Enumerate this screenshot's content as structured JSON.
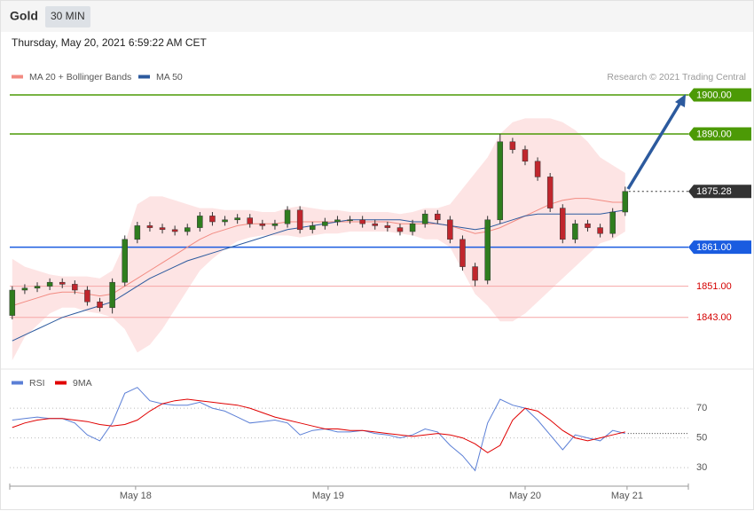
{
  "header": {
    "symbol": "Gold",
    "interval": "30 MIN",
    "timestamp": "Thursday, May 20, 2021 6:59:22 AM CET"
  },
  "chart_data": {
    "type": "candlestick",
    "copyright": "Research © 2021 Trading Central",
    "up_color": "#2f7d1e",
    "down_color": "#c0262d",
    "open": [
      1843.5,
      1850,
      1850.5,
      1851,
      1852,
      1851.5,
      1850,
      1847,
      1845.5,
      1852,
      1863,
      1866.5,
      1866,
      1865.5,
      1865,
      1866,
      1869,
      1867.5,
      1868,
      1868.5,
      1867,
      1866.5,
      1867,
      1870.5,
      1865.5,
      1866.5,
      1867.5,
      1868,
      1868,
      1867,
      1866.5,
      1866,
      1865,
      1867,
      1869.5,
      1868,
      1863,
      1856,
      1852.5,
      1868,
      1888,
      1886,
      1883,
      1879,
      1871,
      1863,
      1867,
      1866,
      1864.5,
      1870
    ],
    "high": [
      1851,
      1851.5,
      1852,
      1853,
      1853,
      1852.5,
      1851,
      1848,
      1853,
      1864,
      1867.5,
      1867.5,
      1867,
      1866.5,
      1867,
      1870,
      1870,
      1869,
      1869.5,
      1869.5,
      1868,
      1868,
      1871.5,
      1871.5,
      1867.5,
      1868.5,
      1869,
      1869,
      1869,
      1868,
      1867.5,
      1867,
      1868,
      1870.5,
      1870.5,
      1869,
      1864,
      1857,
      1869,
      1890,
      1889,
      1887,
      1884,
      1880,
      1872,
      1868,
      1868,
      1867,
      1871,
      1876.5
    ],
    "low": [
      1842.5,
      1849,
      1849.5,
      1850,
      1850.5,
      1849,
      1846,
      1844.5,
      1844,
      1851,
      1862,
      1865,
      1864.5,
      1864,
      1864,
      1865,
      1866.5,
      1866.5,
      1867,
      1866,
      1865.5,
      1865.5,
      1866,
      1864.5,
      1864.5,
      1865.5,
      1866.5,
      1867,
      1866,
      1865.5,
      1865,
      1864,
      1864,
      1866,
      1867,
      1862,
      1855,
      1851,
      1851.5,
      1867,
      1885,
      1882,
      1878,
      1870,
      1862,
      1862,
      1865,
      1863.5,
      1863.5,
      1869
    ],
    "close": [
      1850,
      1850.5,
      1851,
      1852,
      1851.5,
      1850,
      1847,
      1845.5,
      1852,
      1863,
      1866.5,
      1866,
      1865.5,
      1865,
      1866,
      1869,
      1867.5,
      1868,
      1868.5,
      1867,
      1866.5,
      1867,
      1870.5,
      1865.5,
      1866.5,
      1867.5,
      1868,
      1868,
      1867,
      1866.5,
      1866,
      1865,
      1867,
      1869.5,
      1868,
      1863,
      1856,
      1852.5,
      1868,
      1888,
      1886,
      1883,
      1879,
      1871,
      1863,
      1867,
      1866,
      1864.5,
      1870,
      1875.28
    ],
    "overlays": [
      {
        "name": "MA 20 + Bollinger Bands",
        "color": "#f28b82",
        "band_color": "#fde4e4",
        "values": [
          1846,
          1847,
          1848,
          1849,
          1849.5,
          1849.5,
          1849,
          1848.5,
          1849,
          1851,
          1853,
          1855,
          1857,
          1859,
          1861,
          1863,
          1864.5,
          1865.5,
          1866.5,
          1867,
          1867,
          1867,
          1867.5,
          1867.5,
          1867.5,
          1867.5,
          1867.5,
          1867.5,
          1867.5,
          1867.5,
          1867.5,
          1867,
          1867,
          1867,
          1867,
          1866.5,
          1865.5,
          1864.5,
          1865,
          1866,
          1867.5,
          1869,
          1870.5,
          1872,
          1873,
          1873.5,
          1873.5,
          1873,
          1872.5,
          1872.5
        ],
        "upper": [
          1858,
          1856,
          1855,
          1854,
          1853.5,
          1853.5,
          1853.5,
          1853,
          1855,
          1862,
          1872,
          1874,
          1874,
          1873,
          1872,
          1871,
          1871,
          1870.5,
          1870.5,
          1870.5,
          1870,
          1870,
          1871,
          1871.5,
          1871,
          1870.5,
          1870.5,
          1870,
          1870,
          1870,
          1870,
          1869.5,
          1870,
          1871,
          1871,
          1872,
          1876,
          1880,
          1884,
          1890,
          1893,
          1894,
          1894,
          1894,
          1893,
          1891,
          1888,
          1884,
          1882,
          1880
        ],
        "lower": [
          1832,
          1838,
          1841,
          1844,
          1845.5,
          1845.5,
          1844.5,
          1844,
          1843,
          1840,
          1834,
          1836,
          1840,
          1845,
          1850,
          1855,
          1858,
          1860.5,
          1862.5,
          1863.5,
          1864,
          1864,
          1864,
          1863.5,
          1864,
          1864.5,
          1864.5,
          1865,
          1865,
          1865,
          1865,
          1864.5,
          1864,
          1863,
          1863,
          1861,
          1855,
          1849,
          1846,
          1842,
          1842,
          1844,
          1847,
          1850,
          1853,
          1856,
          1859,
          1862,
          1863,
          1865
        ]
      },
      {
        "name": "MA 50",
        "color": "#2c5a9e",
        "values": [
          1837,
          1838.5,
          1840,
          1841.5,
          1843,
          1844,
          1845,
          1846,
          1847,
          1849,
          1851,
          1853,
          1854.5,
          1856,
          1857.5,
          1858.5,
          1859.5,
          1860.5,
          1861.5,
          1862.5,
          1863.5,
          1864.5,
          1865.5,
          1866,
          1866.5,
          1867,
          1867.5,
          1868,
          1868,
          1868,
          1868,
          1868,
          1867.5,
          1867.5,
          1867,
          1866.5,
          1866,
          1865.5,
          1866,
          1867,
          1868,
          1869,
          1869.5,
          1869.5,
          1869.5,
          1869.5,
          1869.5,
          1869.5,
          1870,
          1870.5
        ]
      }
    ],
    "levels": [
      {
        "value": 1900,
        "label": "1900.00",
        "color": "#4c9a06",
        "box": true
      },
      {
        "value": 1890,
        "label": "1890.00",
        "color": "#4c9a06",
        "box": true
      },
      {
        "value": 1875.28,
        "label": "1875.28",
        "color": "#333333",
        "box": true,
        "dotted": true
      },
      {
        "value": 1861,
        "label": "1861.00",
        "color": "#1a5ce0",
        "box": true
      },
      {
        "value": 1851,
        "label": "1851.00",
        "color": "#d40000",
        "box": false
      },
      {
        "value": 1843,
        "label": "1843.00",
        "color": "#d40000",
        "box": false
      }
    ],
    "ylim": [
      1831,
      1903
    ],
    "xlim": [
      -0.2,
      54.05
    ],
    "xticks": [
      {
        "value": 9.86,
        "label": "May 18"
      },
      {
        "value": 25.25,
        "label": "May 19"
      },
      {
        "value": 41,
        "label": "May 20"
      },
      {
        "value": 49.15,
        "label": "May 21"
      }
    ],
    "rsi": {
      "ylim": [
        19,
        82
      ],
      "yticks": [
        30,
        50,
        70
      ],
      "series": [
        {
          "name": "RSI",
          "color": "#5b7fd6",
          "values": [
            62,
            63,
            64,
            63,
            63,
            60,
            52,
            48,
            60,
            80,
            84,
            75,
            73,
            72,
            72,
            74,
            70,
            68,
            64,
            60,
            61,
            62,
            60,
            52,
            55,
            56,
            54,
            54,
            55,
            53,
            52,
            50,
            52,
            56,
            54,
            45,
            38,
            28,
            60,
            76,
            72,
            70,
            62,
            52,
            42,
            52,
            50,
            48,
            55,
            53
          ]
        },
        {
          "name": "9MA",
          "color": "#e00000",
          "values": [
            57,
            60,
            62,
            63,
            63,
            62,
            61,
            59,
            58,
            59,
            62,
            68,
            73,
            75,
            76,
            75,
            74,
            73,
            72,
            70,
            67,
            64,
            62,
            60,
            58,
            56,
            56,
            55,
            55,
            54,
            53,
            52,
            51,
            52,
            53,
            52,
            50,
            46,
            40,
            45,
            62,
            70,
            68,
            62,
            55,
            50,
            48,
            50,
            52,
            54
          ]
        }
      ]
    }
  }
}
